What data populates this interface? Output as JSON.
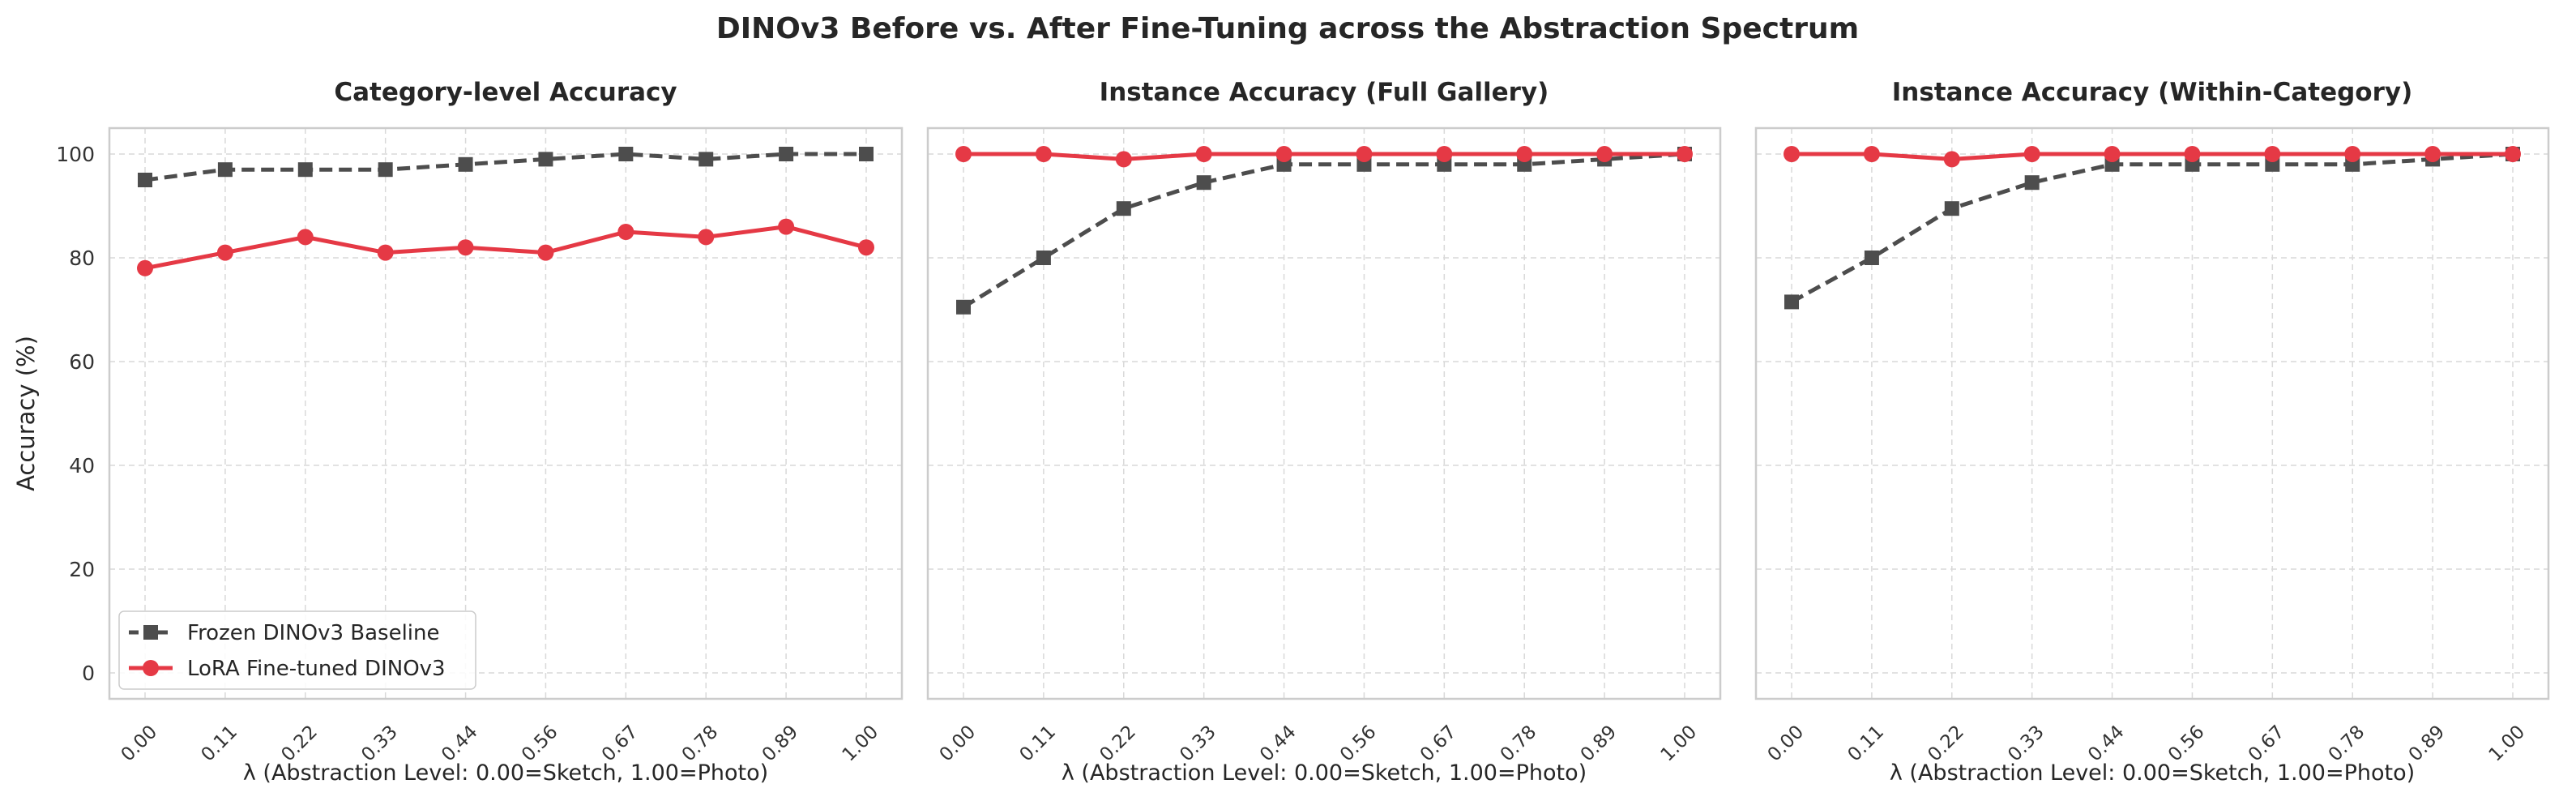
{
  "figure_title": "DINOv3 Before vs. After Fine-Tuning across the Abstraction Spectrum",
  "colors": {
    "frozen": "#4d4d4d",
    "lora": "#e53945",
    "grid": "#d9d9d9",
    "spine": "#cccccc"
  },
  "chart_data": [
    {
      "type": "line",
      "title": "Category-level Accuracy",
      "xlabel": "λ (Abstraction Level: 0.00=Sketch, 1.00=Photo)",
      "ylabel": "Accuracy (%)",
      "x": [
        "0.00",
        "0.11",
        "0.22",
        "0.33",
        "0.44",
        "0.56",
        "0.67",
        "0.78",
        "0.89",
        "1.00"
      ],
      "ylim": [
        -5,
        105
      ],
      "yticks": [
        "0",
        "20",
        "40",
        "60",
        "80",
        "100"
      ],
      "grid": true,
      "legend": "lower-left",
      "series": [
        {
          "name": "Frozen DINOv3 Baseline",
          "style": "dashed",
          "marker": "square",
          "values": [
            95,
            97,
            97,
            97,
            98,
            99,
            100,
            99,
            100,
            100
          ]
        },
        {
          "name": "LoRA Fine-tuned DINOv3",
          "style": "solid",
          "marker": "circle",
          "values": [
            78,
            81,
            84,
            81,
            82,
            81,
            85,
            84,
            86,
            82
          ]
        }
      ]
    },
    {
      "type": "line",
      "title": "Instance Accuracy (Full Gallery)",
      "xlabel": "λ (Abstraction Level: 0.00=Sketch, 1.00=Photo)",
      "x": [
        "0.00",
        "0.11",
        "0.22",
        "0.33",
        "0.44",
        "0.56",
        "0.67",
        "0.78",
        "0.89",
        "1.00"
      ],
      "ylim": [
        -5,
        105
      ],
      "grid": true,
      "series": [
        {
          "name": "Frozen DINOv3 Baseline",
          "style": "dashed",
          "marker": "square",
          "values": [
            70.5,
            80,
            89.5,
            94.5,
            98,
            98,
            98,
            98,
            99,
            100
          ]
        },
        {
          "name": "LoRA Fine-tuned DINOv3",
          "style": "solid",
          "marker": "circle",
          "values": [
            100,
            100,
            99,
            100,
            100,
            100,
            100,
            100,
            100,
            100
          ]
        }
      ]
    },
    {
      "type": "line",
      "title": "Instance Accuracy (Within-Category)",
      "xlabel": "λ (Abstraction Level: 0.00=Sketch, 1.00=Photo)",
      "x": [
        "0.00",
        "0.11",
        "0.22",
        "0.33",
        "0.44",
        "0.56",
        "0.67",
        "0.78",
        "0.89",
        "1.00"
      ],
      "ylim": [
        -5,
        105
      ],
      "grid": true,
      "series": [
        {
          "name": "Frozen DINOv3 Baseline",
          "style": "dashed",
          "marker": "square",
          "values": [
            71.5,
            80,
            89.5,
            94.5,
            98,
            98,
            98,
            98,
            99,
            100
          ]
        },
        {
          "name": "LoRA Fine-tuned DINOv3",
          "style": "solid",
          "marker": "circle",
          "values": [
            100,
            100,
            99,
            100,
            100,
            100,
            100,
            100,
            100,
            100
          ]
        }
      ]
    }
  ]
}
